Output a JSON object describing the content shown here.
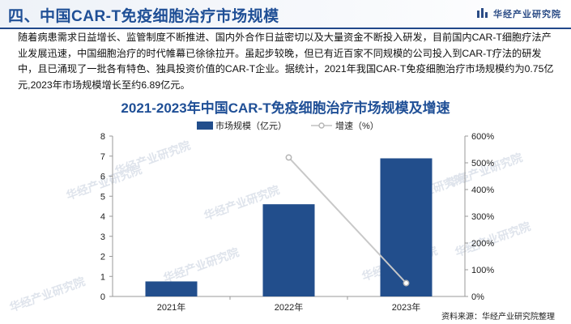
{
  "header": {
    "title": "四、中国CAR-T免疫细胞治疗市场规模",
    "brand": "华经产业研究院"
  },
  "paragraph": "随着病患需求日益增长、监管制度不断推进、国内外合作日益密切以及大量资金不断投入研发，目前国内CAR-T细胞疗法产业发展迅速，中国细胞治疗的时代帷幕已徐徐拉开。虽起步较晚，但已有近百家不同规模的公司投入到CAR-T疗法的研发中，且已涌现了一批各有特色、独具投资价值的CAR-T企业。据统计，2021年我国CAR-T免疫细胞治疗市场规模约为0.75亿元,2023年市场规模增长至约6.89亿元。",
  "watermark": "华经产业研究院",
  "source": "资料来源：华经产业研究院整理",
  "colors": {
    "bar": "#224e8c",
    "line": "#c8c8c8",
    "title": "#1f4f96"
  },
  "chart_data": {
    "type": "bar",
    "title": "2021-2023年中国CAR-T免疫细胞治疗市场规模及增速",
    "categories": [
      "2021年",
      "2022年",
      "2023年"
    ],
    "series": [
      {
        "name": "市场规模（亿元）",
        "type": "bar",
        "axis": "left",
        "values": [
          0.75,
          4.6,
          6.89
        ]
      },
      {
        "name": "增速（%）",
        "type": "line",
        "axis": "right",
        "values": [
          null,
          520,
          50
        ]
      }
    ],
    "y_left": {
      "min": 0,
      "max": 8,
      "ticks": [
        "0",
        "1",
        "2",
        "3",
        "4",
        "5",
        "6",
        "7",
        "8"
      ]
    },
    "y_right": {
      "min": 0,
      "max": 600,
      "ticks": [
        "0%",
        "100%",
        "200%",
        "300%",
        "400%",
        "500%",
        "600%"
      ]
    },
    "legend": "top-center",
    "grid": false
  }
}
